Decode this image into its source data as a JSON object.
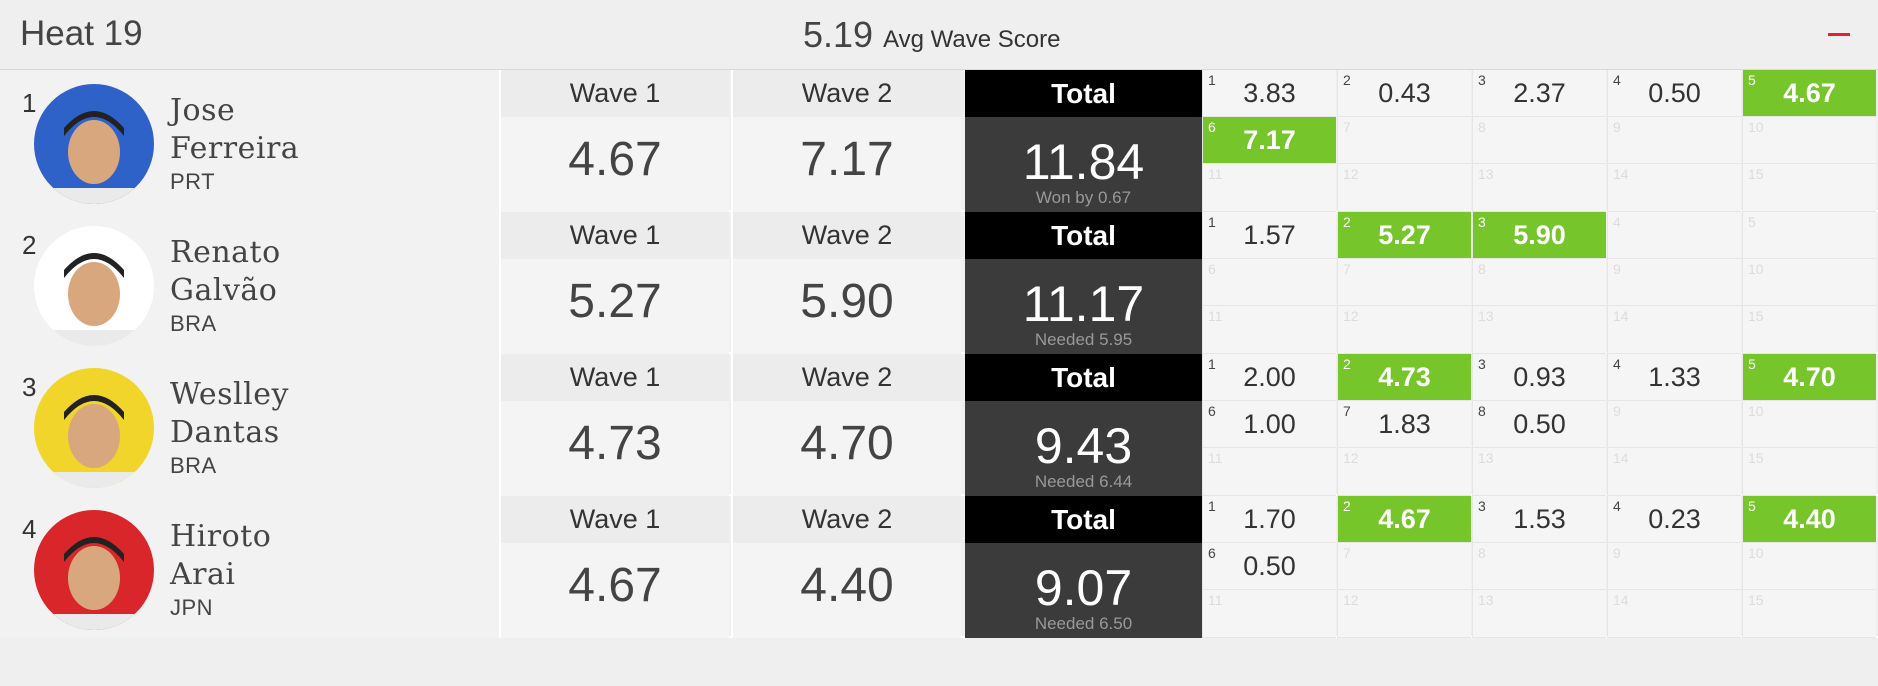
{
  "heat": {
    "title": "Heat 19",
    "avg_value": "5.19",
    "avg_label": "Avg Wave Score"
  },
  "colors": {
    "highlight": "#76c52a",
    "total_bg": "#3b3b3b",
    "collapse": "#e8212e"
  },
  "labels": {
    "wave1": "Wave 1",
    "wave2": "Wave 2",
    "total": "Total"
  },
  "surfers": [
    {
      "rank": "1",
      "first": "Jose",
      "last": "Ferreira",
      "country": "PRT",
      "avatar_bg": "#2f62c9",
      "wave1": "4.67",
      "wave2": "7.17",
      "total": "11.84",
      "note": "Won by 0.67",
      "waves": [
        {
          "i": "1",
          "s": "3.83"
        },
        {
          "i": "2",
          "s": "0.43"
        },
        {
          "i": "3",
          "s": "2.37"
        },
        {
          "i": "4",
          "s": "0.50"
        },
        {
          "i": "5",
          "s": "4.67",
          "h": true
        },
        {
          "i": "6",
          "s": "7.17",
          "h": true
        },
        {
          "i": "7"
        },
        {
          "i": "8"
        },
        {
          "i": "9"
        },
        {
          "i": "10"
        },
        {
          "i": "11"
        },
        {
          "i": "12"
        },
        {
          "i": "13"
        },
        {
          "i": "14"
        },
        {
          "i": "15"
        }
      ]
    },
    {
      "rank": "2",
      "first": "Renato",
      "last": "Galvão",
      "country": "BRA",
      "avatar_bg": "#ffffff",
      "wave1": "5.27",
      "wave2": "5.90",
      "total": "11.17",
      "note": "Needed 5.95",
      "waves": [
        {
          "i": "1",
          "s": "1.57"
        },
        {
          "i": "2",
          "s": "5.27",
          "h": true
        },
        {
          "i": "3",
          "s": "5.90",
          "h": true
        },
        {
          "i": "4"
        },
        {
          "i": "5"
        },
        {
          "i": "6"
        },
        {
          "i": "7"
        },
        {
          "i": "8"
        },
        {
          "i": "9"
        },
        {
          "i": "10"
        },
        {
          "i": "11"
        },
        {
          "i": "12"
        },
        {
          "i": "13"
        },
        {
          "i": "14"
        },
        {
          "i": "15"
        }
      ]
    },
    {
      "rank": "3",
      "first": "Weslley",
      "last": "Dantas",
      "country": "BRA",
      "avatar_bg": "#f1d52a",
      "wave1": "4.73",
      "wave2": "4.70",
      "total": "9.43",
      "note": "Needed 6.44",
      "waves": [
        {
          "i": "1",
          "s": "2.00"
        },
        {
          "i": "2",
          "s": "4.73",
          "h": true
        },
        {
          "i": "3",
          "s": "0.93"
        },
        {
          "i": "4",
          "s": "1.33"
        },
        {
          "i": "5",
          "s": "4.70",
          "h": true
        },
        {
          "i": "6",
          "s": "1.00"
        },
        {
          "i": "7",
          "s": "1.83"
        },
        {
          "i": "8",
          "s": "0.50"
        },
        {
          "i": "9"
        },
        {
          "i": "10"
        },
        {
          "i": "11"
        },
        {
          "i": "12"
        },
        {
          "i": "13"
        },
        {
          "i": "14"
        },
        {
          "i": "15"
        }
      ]
    },
    {
      "rank": "4",
      "first": "Hiroto",
      "last": "Arai",
      "country": "JPN",
      "avatar_bg": "#d9262b",
      "wave1": "4.67",
      "wave2": "4.40",
      "total": "9.07",
      "note": "Needed 6.50",
      "waves": [
        {
          "i": "1",
          "s": "1.70"
        },
        {
          "i": "2",
          "s": "4.67",
          "h": true
        },
        {
          "i": "3",
          "s": "1.53"
        },
        {
          "i": "4",
          "s": "0.23"
        },
        {
          "i": "5",
          "s": "4.40",
          "h": true
        },
        {
          "i": "6",
          "s": "0.50"
        },
        {
          "i": "7"
        },
        {
          "i": "8"
        },
        {
          "i": "9"
        },
        {
          "i": "10"
        },
        {
          "i": "11"
        },
        {
          "i": "12"
        },
        {
          "i": "13"
        },
        {
          "i": "14"
        },
        {
          "i": "15"
        }
      ]
    }
  ]
}
